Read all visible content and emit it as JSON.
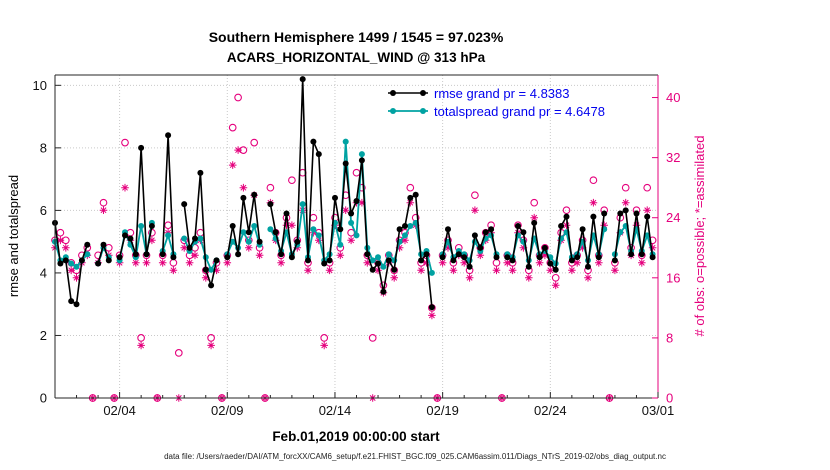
{
  "title": {
    "line1": "Southern Hemisphere 1499 / 1545 = 97.023%",
    "line2": "ACARS_HORIZONTAL_WIND @ 313 hPa"
  },
  "legend": {
    "rmse": "rmse grand pr = 4.8383",
    "totalspread": "totalspread grand pr = 4.6478"
  },
  "footer": "data file: /Users/raeder/DAI/ATM_forcXX/CAM6_setup/f.e21.FHIST_BGC.f09_025.CAM6assim.011/Diags_NTrS_2019-02/obs_diag_output.nc",
  "colors": {
    "rmse": "#000000",
    "totalspread": "#00A2A2",
    "obs": "#E5007D",
    "legend_text": "#0000EE",
    "grid": "#C9C9C9",
    "axis": "#262626"
  },
  "chart_data": {
    "type": "line",
    "title": "Southern Hemisphere 1499 / 1545 = 97.023% / ACARS_HORIZONTAL_WIND @ 313 hPa",
    "xlabel": "Feb.01,2019 00:00:00 start",
    "ylabel_left": "rmse and totalspread",
    "ylabel_right": "# of obs: o=possible; *=assimilated",
    "legend_position": "top-center-inside",
    "grid": true,
    "xlim": [
      0,
      28
    ],
    "ylim_left": [
      0,
      10.33
    ],
    "ylim_right": [
      0,
      43
    ],
    "x_start_day": 0,
    "x_step_day": 0.25,
    "xticks": {
      "days": [
        3,
        8,
        13,
        18,
        23,
        28
      ],
      "labels": [
        "02/04",
        "02/09",
        "02/14",
        "02/19",
        "02/24",
        "03/01"
      ]
    },
    "yticks_left": [
      0,
      2,
      4,
      6,
      8,
      10
    ],
    "yticks_right": [
      0,
      8,
      16,
      24,
      32,
      40
    ],
    "stats": {
      "rmse_grand_mean": 4.8383,
      "totalspread_grand_mean": 4.6478,
      "assimilated_total": 1499,
      "possible_total": 1545,
      "assimilated_pct": 97.023
    },
    "series": {
      "rmse": [
        5.6,
        4.3,
        4.4,
        3.1,
        3.0,
        4.4,
        4.9,
        null,
        4.3,
        4.9,
        4.4,
        null,
        4.5,
        5.2,
        5.1,
        4.6,
        8.0,
        4.6,
        5.5,
        null,
        4.6,
        8.4,
        4.5,
        null,
        6.2,
        4.8,
        5.1,
        7.2,
        4.1,
        3.6,
        4.4,
        null,
        4.5,
        5.5,
        4.6,
        6.4,
        5.3,
        6.5,
        5.0,
        null,
        6.2,
        5.3,
        4.6,
        5.9,
        4.5,
        5.0,
        10.2,
        4.4,
        8.2,
        7.8,
        4.3,
        4.4,
        6.4,
        5.4,
        7.5,
        5.9,
        6.3,
        7.6,
        4.6,
        4.1,
        4.3,
        3.4,
        4.4,
        4.1,
        5.4,
        5.5,
        6.4,
        6.5,
        4.4,
        4.6,
        2.9,
        null,
        4.5,
        5.4,
        4.4,
        4.6,
        4.5,
        4.2,
        5.2,
        4.8,
        5.3,
        5.4,
        4.5,
        null,
        4.5,
        4.4,
        5.5,
        5.3,
        4.2,
        5.6,
        4.5,
        4.8,
        4.3,
        4.1,
        5.5,
        5.8,
        4.4,
        4.5,
        5.4,
        4.2,
        5.8,
        4.5,
        5.9,
        null,
        4.4,
        5.9,
        6.0,
        4.6,
        5.9,
        4.6,
        5.8,
        4.5
      ],
      "totalspread": [
        5.0,
        4.4,
        4.5,
        4.3,
        4.2,
        4.4,
        4.6,
        null,
        4.3,
        4.8,
        4.5,
        null,
        4.4,
        5.3,
        4.9,
        4.5,
        5.5,
        4.6,
        5.6,
        null,
        4.7,
        5.2,
        4.6,
        null,
        5.1,
        4.7,
        5.0,
        5.1,
        4.5,
        4.1,
        4.4,
        null,
        4.6,
        5.0,
        4.8,
        5.3,
        5.0,
        5.5,
        4.9,
        null,
        5.4,
        5.1,
        4.7,
        5.3,
        4.6,
        4.9,
        6.2,
        4.5,
        5.4,
        5.2,
        4.4,
        4.6,
        5.6,
        4.9,
        8.2,
        5.6,
        5.2,
        7.8,
        4.8,
        4.4,
        4.5,
        4.2,
        4.6,
        4.4,
        5.0,
        5.2,
        5.5,
        5.6,
        4.6,
        4.7,
        4.0,
        null,
        4.6,
        5.0,
        4.5,
        4.7,
        4.6,
        4.4,
        5.0,
        4.7,
        5.1,
        5.2,
        4.6,
        null,
        4.6,
        4.5,
        5.2,
        5.0,
        4.4,
        5.1,
        4.6,
        4.7,
        4.5,
        4.3,
        5.1,
        5.3,
        4.5,
        4.6,
        5.0,
        4.4,
        5.2,
        4.6,
        5.4,
        null,
        4.6,
        5.3,
        5.5,
        4.7,
        5.4,
        4.7,
        5.2,
        4.6
      ]
    },
    "series_obs": {
      "possible": [
        21,
        22,
        21,
        18,
        17,
        19,
        20,
        0,
        19,
        26,
        20,
        0,
        19,
        34,
        22,
        19,
        8,
        19,
        22,
        0,
        19,
        23,
        18,
        6,
        21,
        19,
        20,
        22,
        17,
        8,
        18,
        0,
        19,
        36,
        40,
        33,
        21,
        34,
        20,
        0,
        28,
        22,
        19,
        24,
        29,
        21,
        30,
        18,
        24,
        22,
        8,
        18,
        24,
        20,
        27,
        22,
        30,
        28,
        19,
        8,
        18,
        15,
        19,
        17,
        21,
        22,
        28,
        24,
        18,
        19,
        12,
        0,
        19,
        21,
        18,
        20,
        19,
        17,
        27,
        20,
        22,
        23,
        18,
        0,
        19,
        18,
        23,
        21,
        17,
        26,
        19,
        20,
        18,
        16,
        22,
        25,
        18,
        19,
        21,
        17,
        29,
        19,
        25,
        0,
        18,
        24,
        28,
        20,
        25,
        19,
        28,
        21
      ],
      "assimilated": [
        20,
        21,
        20,
        17,
        16,
        18,
        19,
        0,
        18,
        25,
        19,
        0,
        18,
        28,
        21,
        18,
        7,
        18,
        21,
        0,
        18,
        22,
        17,
        0,
        20,
        18,
        19,
        21,
        16,
        7,
        17,
        0,
        18,
        31,
        33,
        28,
        20,
        27,
        19,
        0,
        26,
        21,
        18,
        23,
        23,
        20,
        25,
        17,
        22,
        21,
        7,
        17,
        23,
        19,
        25,
        21,
        26,
        26,
        18,
        0,
        17,
        14,
        18,
        16,
        20,
        21,
        26,
        23,
        17,
        18,
        11,
        0,
        18,
        20,
        17,
        19,
        18,
        16,
        25,
        19,
        21,
        22,
        17,
        0,
        18,
        17,
        22,
        20,
        16,
        24,
        18,
        19,
        17,
        15,
        21,
        23,
        17,
        18,
        20,
        16,
        26,
        18,
        23,
        0,
        17,
        22,
        26,
        19,
        23,
        18,
        25,
        20
      ]
    }
  }
}
